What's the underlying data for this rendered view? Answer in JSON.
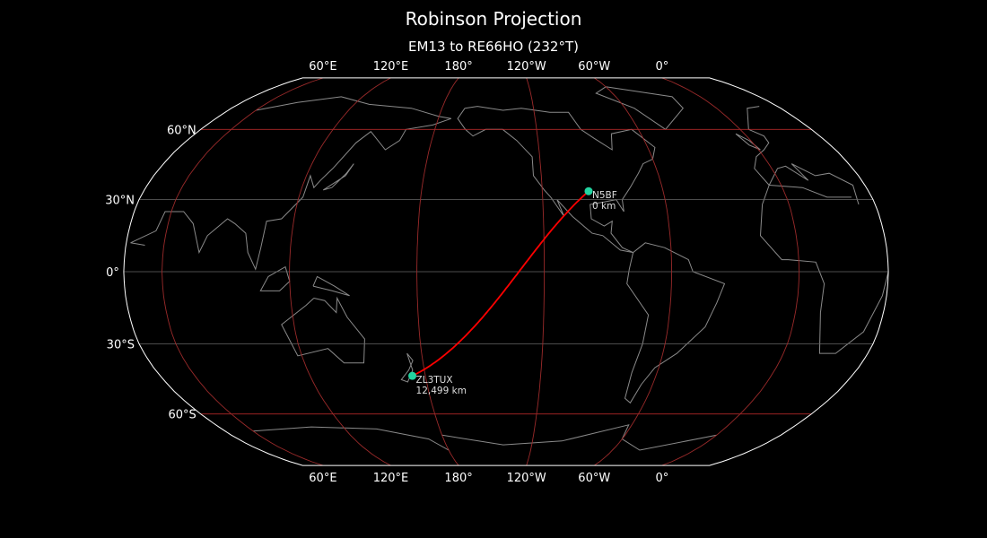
{
  "title": "Robinson Projection",
  "subtitle": "EM13 to RE66HO (232°T)",
  "projection": "robinson",
  "central_longitude": -138,
  "lon_ticks": [
    {
      "lon": 60,
      "label": "60°E"
    },
    {
      "lon": 120,
      "label": "120°E"
    },
    {
      "lon": 180,
      "label": "180°"
    },
    {
      "lon": -120,
      "label": "120°W"
    },
    {
      "lon": -60,
      "label": "60°W"
    },
    {
      "lon": 0,
      "label": "0°"
    }
  ],
  "lat_ticks": [
    {
      "lat": 60,
      "label": "60°N"
    },
    {
      "lat": 30,
      "label": "30°N"
    },
    {
      "lat": 0,
      "label": "0°"
    },
    {
      "lat": -30,
      "label": "30°S"
    },
    {
      "lat": -60,
      "label": "60°S"
    }
  ],
  "stations": [
    {
      "call": "N5BF",
      "grid": "EM13",
      "lat": 33.5,
      "lon": -97,
      "distance": "0 km"
    },
    {
      "call": "ZL3TUX",
      "grid": "RE66HO",
      "lat": -43.4,
      "lon": 173.2,
      "distance": "12,499 km"
    }
  ],
  "colors": {
    "background": "#000000",
    "path": "#ff0000",
    "station": "#22d3a0",
    "coastline": "#8a8a8a",
    "graticule_meridian": "#9a2a2a",
    "graticule_parallel_60": "#b02828",
    "graticule_parallel": "#666666",
    "border": "#ffffff"
  }
}
